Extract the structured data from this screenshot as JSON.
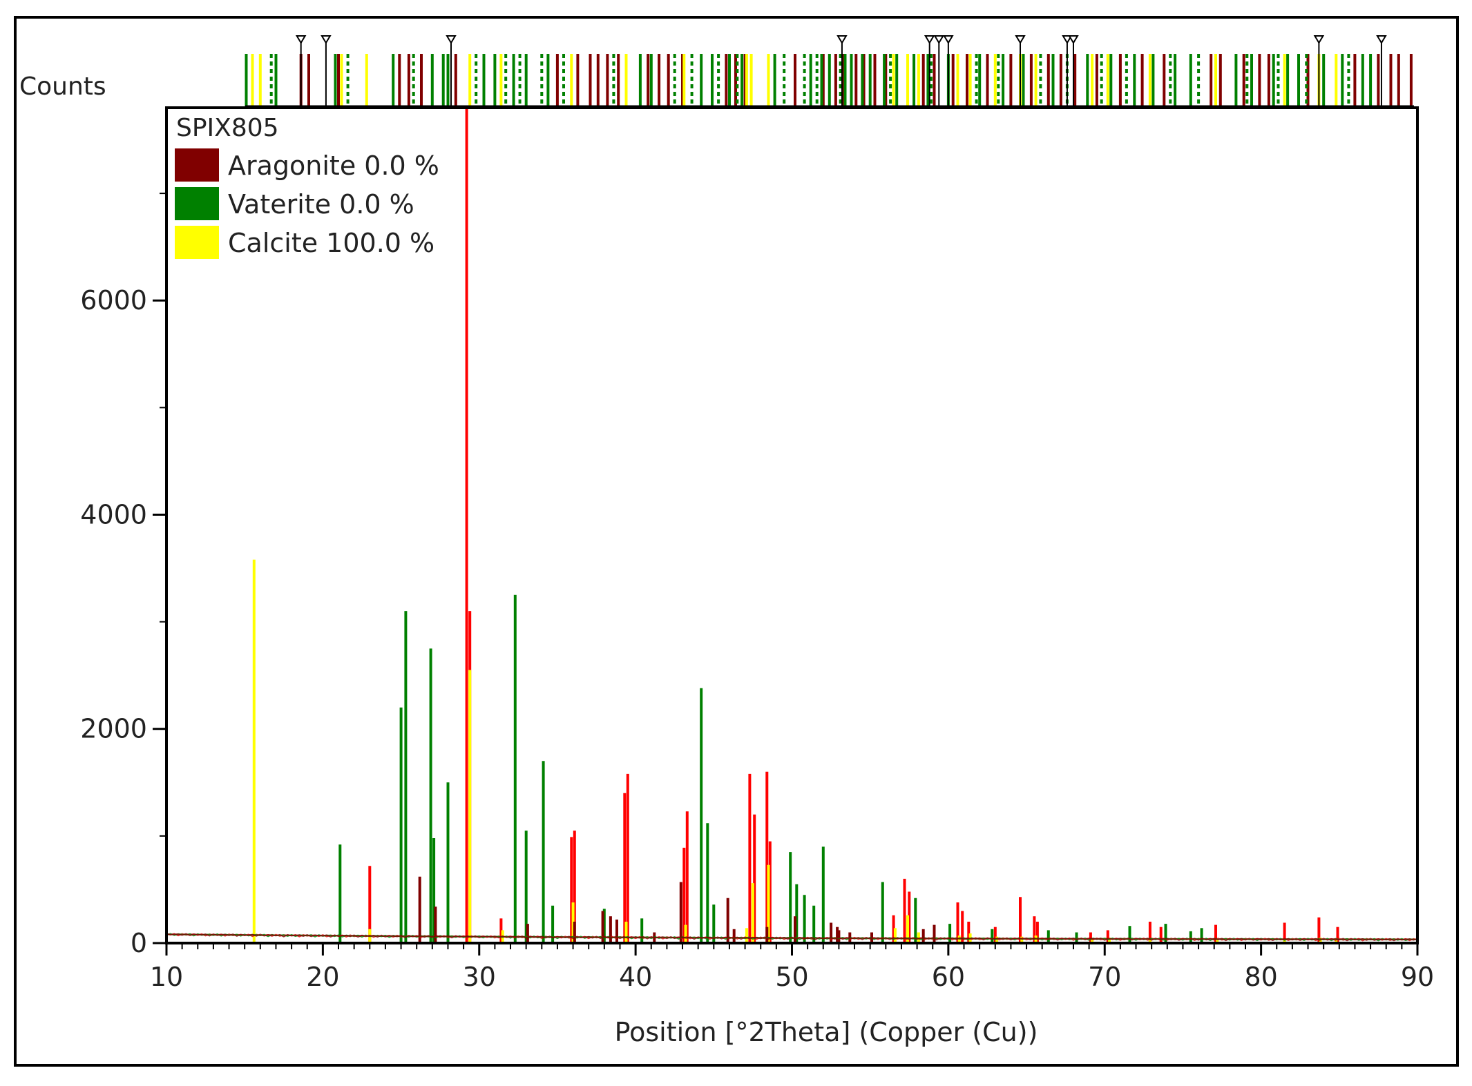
{
  "chart_data": {
    "type": "bar",
    "ylabel": "Counts",
    "xlabel": "Position [°2Theta] (Copper (Cu))",
    "xlim": [
      10,
      90
    ],
    "ylim": [
      0,
      7800
    ],
    "xticks": [
      "10",
      "20",
      "30",
      "40",
      "50",
      "60",
      "70",
      "80",
      "90"
    ],
    "yticks": [
      "0",
      "2000",
      "4000",
      "6000"
    ],
    "grid": false,
    "legend": {
      "title": "SPIX805",
      "placement": "top-left",
      "entries": [
        {
          "label": "Aragonite 0.0 %",
          "color": "#800000"
        },
        {
          "label": "Vaterite 0.0 %",
          "color": "#008000"
        },
        {
          "label": "Calcite 100.0 %",
          "color": "#ffff00"
        }
      ]
    },
    "series": [
      {
        "color": "#ff0000",
        "x": [
          23.0,
          29.2,
          29.4,
          31.4,
          35.9,
          36.1,
          39.3,
          39.5,
          43.1,
          43.3,
          47.3,
          47.6,
          48.4,
          48.6,
          56.5,
          57.2,
          57.5,
          60.6,
          60.9,
          61.3,
          63.0,
          64.6,
          65.5,
          65.7,
          69.1,
          70.2,
          72.9,
          73.6,
          77.1,
          81.5,
          83.7,
          84.9
        ],
        "values": [
          720,
          7800,
          3100,
          230,
          990,
          1050,
          1400,
          1580,
          890,
          1230,
          1580,
          1200,
          1600,
          950,
          260,
          600,
          480,
          380,
          300,
          200,
          150,
          430,
          250,
          200,
          100,
          120,
          200,
          150,
          170,
          190,
          240,
          150
        ]
      },
      {
        "color": "#008000",
        "x": [
          21.1,
          25.0,
          25.3,
          26.9,
          27.1,
          28.0,
          32.3,
          33.0,
          34.1,
          34.7,
          38.0,
          40.4,
          44.2,
          44.6,
          45.0,
          49.9,
          50.3,
          50.8,
          51.4,
          52.0,
          55.8,
          57.9,
          60.1,
          62.8,
          66.4,
          68.2,
          71.6,
          73.9,
          75.5,
          76.2
        ],
        "values": [
          920,
          2200,
          3100,
          2750,
          980,
          1500,
          3250,
          1050,
          1700,
          350,
          320,
          230,
          2380,
          1120,
          360,
          850,
          550,
          450,
          350,
          900,
          570,
          420,
          180,
          130,
          120,
          100,
          160,
          180,
          110,
          140
        ]
      },
      {
        "color": "#ffff00",
        "x": [
          15.6,
          23.0,
          29.4,
          31.5,
          36.0,
          39.4,
          43.2,
          47.1,
          47.5,
          48.5,
          56.6,
          57.4,
          58.1,
          60.7,
          61.4,
          63.1,
          64.7,
          65.6,
          69.2,
          70.3,
          72.9,
          77.2,
          81.5,
          83.8,
          84.8
        ],
        "values": [
          3580,
          130,
          2550,
          120,
          380,
          200,
          170,
          140,
          560,
          730,
          140,
          260,
          100,
          70,
          90,
          60,
          60,
          70,
          40,
          50,
          40,
          40,
          40,
          50,
          40
        ]
      },
      {
        "color": "#800000",
        "x": [
          26.2,
          27.2,
          33.1,
          36.1,
          37.9,
          38.4,
          38.8,
          41.2,
          42.9,
          45.9,
          46.3,
          48.4,
          50.2,
          52.5,
          52.9,
          53.0,
          53.7,
          55.1,
          58.4,
          59.1
        ],
        "values": [
          620,
          340,
          180,
          200,
          300,
          250,
          220,
          100,
          570,
          420,
          130,
          150,
          250,
          190,
          150,
          120,
          100,
          100,
          130,
          170
        ]
      }
    ]
  },
  "reference_marks": {
    "rows": [
      {
        "color": "#800000",
        "style": "solid",
        "x": [
          18.6,
          19.1,
          21.0,
          24.9,
          25.5,
          26.3,
          28.5,
          35.0,
          36.3,
          37.1,
          37.6,
          38.2,
          38.9,
          39.4,
          40.8,
          41.5,
          42.1,
          43.0,
          45.8,
          46.4,
          47.0,
          48.5,
          50.2,
          52.0,
          52.8,
          53.3,
          54.1,
          54.6,
          55.3,
          56.0,
          57.4,
          58.4,
          59.1,
          60.3,
          61.2,
          62.5,
          64.0,
          65.3,
          66.4,
          67.2,
          68.1,
          69.5,
          71.0,
          72.4,
          73.8,
          76.8,
          77.1,
          77.4,
          78.9,
          79.9,
          80.5,
          83.0,
          86.0,
          87.5,
          88.3,
          88.8,
          89.6
        ]
      },
      {
        "color": "#008000",
        "style": "solid",
        "x": [
          15.1,
          17.0,
          20.8,
          24.5,
          27.0,
          27.7,
          28.0,
          30.3,
          31.0,
          32.2,
          33.0,
          34.4,
          40.3,
          41.0,
          44.2,
          44.9,
          46.0,
          46.8,
          48.9,
          51.2,
          51.9,
          52.4,
          53.4,
          53.8,
          54.5,
          55.0,
          55.9,
          56.7,
          57.8,
          58.7,
          60.0,
          60.6,
          62.0,
          63.5,
          64.8,
          66.7,
          68.9,
          70.4,
          71.9,
          73.1,
          74.5,
          75.5,
          78.4,
          79.4,
          80.8,
          81.7,
          82.4,
          84.0,
          85.2,
          86.5,
          87.0
        ]
      },
      {
        "color": "#ffff00",
        "style": "solid",
        "x": [
          15.5,
          16.0,
          21.2,
          22.8,
          29.4,
          31.4,
          35.9,
          39.4,
          43.1,
          47.1,
          47.4,
          48.5,
          56.5,
          57.4,
          58.1,
          60.6,
          61.4,
          63.0,
          64.6,
          65.6,
          69.2,
          70.2,
          72.9,
          77.1,
          81.5,
          83.7,
          84.8
        ]
      },
      {
        "color": "#008000",
        "style": "dashed",
        "x": [
          16.7,
          21.6,
          25.8,
          29.8,
          31.7,
          32.6,
          34.0,
          35.4,
          38.6,
          42.5,
          43.6,
          45.3,
          46.5,
          49.5,
          50.8,
          51.6,
          53.1,
          56.3,
          58.9,
          61.8,
          63.2,
          65.9,
          67.6,
          69.8,
          71.4,
          74.2,
          76.0,
          79.1,
          81.1,
          82.9,
          85.6
        ]
      }
    ],
    "peak_markers": [
      18.6,
      20.2,
      28.2,
      53.2,
      58.8,
      59.4,
      60.0,
      64.6,
      67.6,
      68.0,
      83.7,
      87.7
    ]
  }
}
